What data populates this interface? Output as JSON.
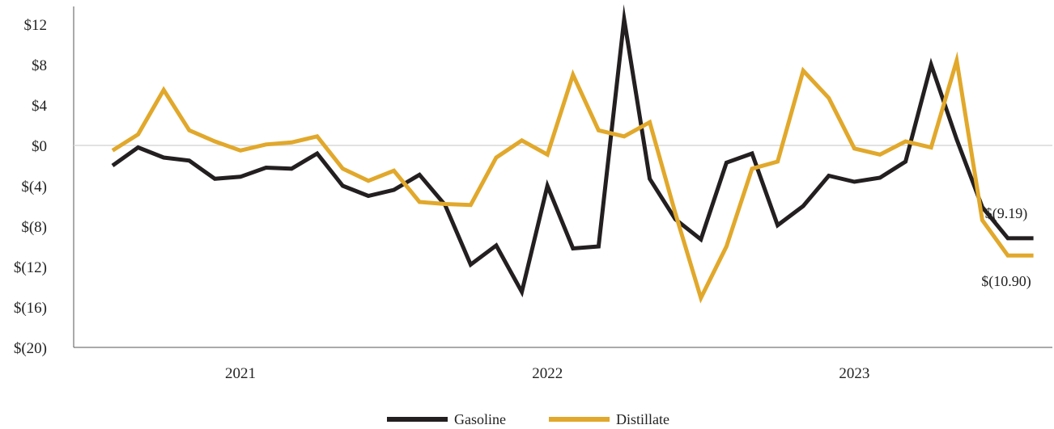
{
  "chart_data": {
    "type": "line",
    "title": "",
    "xlabel": "",
    "ylabel": "",
    "ylim": [
      -20,
      13.5
    ],
    "yticks": [
      12,
      8,
      4,
      0,
      -4,
      -8,
      -12,
      -16,
      -20
    ],
    "ytick_labels": [
      "$12",
      "$8",
      "$4",
      "$0",
      "$(4)",
      "$(8)",
      "$(12)",
      "$(16)",
      "$(20)"
    ],
    "x_year_labels": [
      "2021",
      "2022",
      "2023"
    ],
    "x_year_label_index": [
      5,
      17,
      29
    ],
    "zero_line": true,
    "legend_position": "bottom-center",
    "series": [
      {
        "name": "Gasoline",
        "color": "#231f20",
        "values": [
          -2.0,
          -0.2,
          -1.2,
          -1.5,
          -3.3,
          -3.1,
          -2.2,
          -2.3,
          -0.8,
          -4.0,
          -5.0,
          -4.4,
          -2.9,
          -5.9,
          -11.8,
          -9.9,
          -14.5,
          -4.0,
          -10.2,
          -10.0,
          12.5,
          -3.3,
          -7.3,
          -9.3,
          -1.7,
          -0.8,
          -7.9,
          -6.0,
          -3.0,
          -3.6,
          -3.2,
          -1.6,
          8.0,
          0.6,
          -6.1,
          -9.19,
          -9.19
        ],
        "end_label": "$(9.19)"
      },
      {
        "name": "Distillate",
        "color": "#e1a82b",
        "values": [
          -0.5,
          1.1,
          5.5,
          1.5,
          0.4,
          -0.5,
          0.1,
          0.3,
          0.9,
          -2.3,
          -3.5,
          -2.5,
          -5.6,
          -5.8,
          -5.9,
          -1.2,
          0.5,
          -0.9,
          7.0,
          1.5,
          0.9,
          2.3,
          -6.7,
          -15.1,
          -10.0,
          -2.3,
          -1.6,
          7.4,
          4.7,
          -0.3,
          -0.9,
          0.4,
          -0.2,
          8.4,
          -7.4,
          -10.9,
          -10.9
        ],
        "end_label": "$(10.90)"
      }
    ]
  }
}
